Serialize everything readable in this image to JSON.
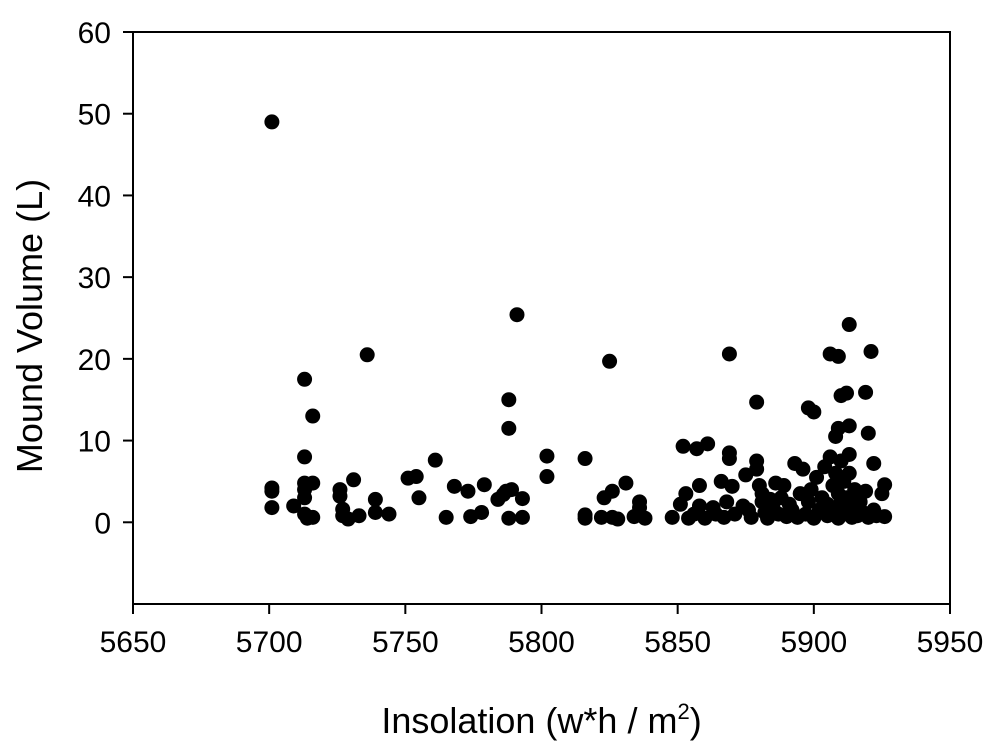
{
  "chart_data": {
    "type": "scatter",
    "xlabel": "Insolation (w*h / m",
    "xlabel_superscript": "2",
    "xlabel_suffix": ")",
    "ylabel": "Mound Volume (L)",
    "xlim": [
      5650,
      5950
    ],
    "ylim": [
      -10,
      60
    ],
    "xticks": [
      5650,
      5700,
      5750,
      5800,
      5850,
      5900,
      5950
    ],
    "yticks": [
      0,
      10,
      20,
      30,
      40,
      50,
      60
    ],
    "grid": false,
    "legend": "none",
    "marker_color": "#000000",
    "points": [
      [
        5701,
        49
      ],
      [
        5701,
        4.2
      ],
      [
        5701,
        3.8
      ],
      [
        5701,
        1.8
      ],
      [
        5709,
        2.0
      ],
      [
        5713,
        17.5
      ],
      [
        5713,
        8.0
      ],
      [
        5713,
        4.8
      ],
      [
        5713,
        4.0
      ],
      [
        5713,
        3.0
      ],
      [
        5713,
        1.0
      ],
      [
        5714,
        0.5
      ],
      [
        5716,
        4.8
      ],
      [
        5716,
        13.0
      ],
      [
        5716,
        0.6
      ],
      [
        5726,
        4.0
      ],
      [
        5726,
        3.2
      ],
      [
        5727,
        1.6
      ],
      [
        5727,
        0.8
      ],
      [
        5729,
        0.4
      ],
      [
        5731,
        5.2
      ],
      [
        5733,
        0.8
      ],
      [
        5736,
        20.5
      ],
      [
        5739,
        2.8
      ],
      [
        5739,
        1.2
      ],
      [
        5744,
        1.0
      ],
      [
        5751,
        5.4
      ],
      [
        5754,
        5.6
      ],
      [
        5755,
        3.0
      ],
      [
        5761,
        7.6
      ],
      [
        5765,
        0.6
      ],
      [
        5768,
        4.4
      ],
      [
        5773,
        3.8
      ],
      [
        5774,
        0.7
      ],
      [
        5778,
        1.2
      ],
      [
        5779,
        4.6
      ],
      [
        5784,
        2.8
      ],
      [
        5786,
        3.4
      ],
      [
        5787,
        3.8
      ],
      [
        5788,
        11.5
      ],
      [
        5788,
        15.0
      ],
      [
        5788,
        0.5
      ],
      [
        5789,
        4.0
      ],
      [
        5791,
        25.4
      ],
      [
        5793,
        2.9
      ],
      [
        5793,
        0.6
      ],
      [
        5802,
        8.1
      ],
      [
        5802,
        5.6
      ],
      [
        5816,
        7.8
      ],
      [
        5816,
        0.9
      ],
      [
        5816,
        0.5
      ],
      [
        5822,
        0.6
      ],
      [
        5823,
        3.0
      ],
      [
        5825,
        19.7
      ],
      [
        5826,
        3.8
      ],
      [
        5826,
        0.6
      ],
      [
        5828,
        0.4
      ],
      [
        5831,
        4.8
      ],
      [
        5834,
        0.7
      ],
      [
        5836,
        2.5
      ],
      [
        5836,
        1.8
      ],
      [
        5838,
        0.5
      ],
      [
        5848,
        0.6
      ],
      [
        5851,
        2.2
      ],
      [
        5852,
        9.3
      ],
      [
        5853,
        3.5
      ],
      [
        5854,
        0.5
      ],
      [
        5856,
        1.0
      ],
      [
        5857,
        9.0
      ],
      [
        5858,
        4.5
      ],
      [
        5858,
        2.0
      ],
      [
        5860,
        0.5
      ],
      [
        5861,
        9.6
      ],
      [
        5863,
        1.8
      ],
      [
        5864,
        1.0
      ],
      [
        5866,
        5.0
      ],
      [
        5867,
        0.6
      ],
      [
        5868,
        2.5
      ],
      [
        5869,
        20.6
      ],
      [
        5869,
        8.5
      ],
      [
        5869,
        7.8
      ],
      [
        5870,
        4.4
      ],
      [
        5871,
        1.0
      ],
      [
        5874,
        2.0
      ],
      [
        5875,
        5.8
      ],
      [
        5876,
        1.5
      ],
      [
        5877,
        0.6
      ],
      [
        5879,
        14.7
      ],
      [
        5879,
        7.5
      ],
      [
        5879,
        6.5
      ],
      [
        5880,
        4.5
      ],
      [
        5881,
        3.5
      ],
      [
        5881,
        2.5
      ],
      [
        5882,
        1.2
      ],
      [
        5883,
        0.5
      ],
      [
        5884,
        2.8
      ],
      [
        5885,
        1.8
      ],
      [
        5886,
        4.8
      ],
      [
        5887,
        1.0
      ],
      [
        5888,
        3.0
      ],
      [
        5889,
        4.5
      ],
      [
        5890,
        0.7
      ],
      [
        5891,
        2.2
      ],
      [
        5892,
        1.5
      ],
      [
        5893,
        7.2
      ],
      [
        5894,
        0.6
      ],
      [
        5895,
        3.5
      ],
      [
        5896,
        6.5
      ],
      [
        5897,
        1.0
      ],
      [
        5898,
        2.5
      ],
      [
        5898,
        14.0
      ],
      [
        5899,
        4.0
      ],
      [
        5900,
        13.5
      ],
      [
        5900,
        0.5
      ],
      [
        5901,
        5.5
      ],
      [
        5902,
        1.5
      ],
      [
        5903,
        3.0
      ],
      [
        5904,
        6.8
      ],
      [
        5905,
        2.2
      ],
      [
        5905,
        0.8
      ],
      [
        5906,
        20.6
      ],
      [
        5906,
        8.0
      ],
      [
        5907,
        4.5
      ],
      [
        5907,
        1.2
      ],
      [
        5908,
        10.5
      ],
      [
        5908,
        6.0
      ],
      [
        5909,
        20.3
      ],
      [
        5909,
        11.5
      ],
      [
        5909,
        3.5
      ],
      [
        5909,
        0.5
      ],
      [
        5910,
        15.5
      ],
      [
        5910,
        7.5
      ],
      [
        5910,
        2.5
      ],
      [
        5911,
        5.0
      ],
      [
        5911,
        1.0
      ],
      [
        5912,
        15.8
      ],
      [
        5912,
        3.0
      ],
      [
        5913,
        24.2
      ],
      [
        5913,
        8.3
      ],
      [
        5913,
        11.8
      ],
      [
        5913,
        6.0
      ],
      [
        5913,
        2.0
      ],
      [
        5914,
        0.6
      ],
      [
        5915,
        4.0
      ],
      [
        5915,
        1.5
      ],
      [
        5916,
        3.2
      ],
      [
        5916,
        0.8
      ],
      [
        5917,
        2.5
      ],
      [
        5918,
        1.2
      ],
      [
        5919,
        15.9
      ],
      [
        5919,
        3.8
      ],
      [
        5920,
        10.9
      ],
      [
        5920,
        0.6
      ],
      [
        5921,
        20.9
      ],
      [
        5922,
        7.2
      ],
      [
        5922,
        1.5
      ],
      [
        5923,
        0.8
      ],
      [
        5925,
        3.5
      ],
      [
        5926,
        4.6
      ],
      [
        5926,
        0.7
      ]
    ]
  }
}
